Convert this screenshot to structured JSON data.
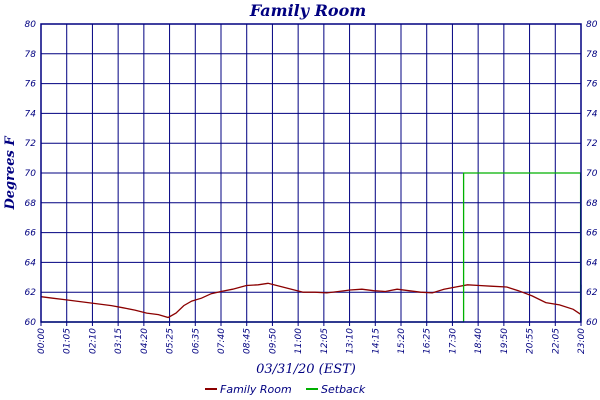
{
  "chart_data": {
    "type": "line",
    "title": "Family Room",
    "xlabel": "03/31/20 (EST)",
    "ylabel": "Degrees F",
    "ylim": [
      60,
      80
    ],
    "yticks": [
      60,
      62,
      64,
      66,
      68,
      70,
      72,
      74,
      76,
      78,
      80
    ],
    "xlim": [
      "00:00",
      "23:00"
    ],
    "xticks": [
      "00:00",
      "01:05",
      "02:10",
      "03:15",
      "04:20",
      "05:25",
      "06:35",
      "07:40",
      "08:45",
      "09:50",
      "11:00",
      "12:05",
      "13:10",
      "14:15",
      "15:20",
      "16:25",
      "17:30",
      "18:40",
      "19:50",
      "20:55",
      "22:05",
      "23:00"
    ],
    "grid": true,
    "legend_position": "bottom",
    "colors": {
      "axis": "#000080",
      "grid": "#000080"
    },
    "series": [
      {
        "name": "Family Room",
        "color": "#8b0000",
        "points": [
          [
            "00:00",
            61.7
          ],
          [
            "00:30",
            61.6
          ],
          [
            "01:00",
            61.5
          ],
          [
            "01:30",
            61.4
          ],
          [
            "02:00",
            61.3
          ],
          [
            "02:30",
            61.2
          ],
          [
            "03:00",
            61.1
          ],
          [
            "03:30",
            60.95
          ],
          [
            "04:00",
            60.8
          ],
          [
            "04:30",
            60.6
          ],
          [
            "05:00",
            60.5
          ],
          [
            "05:25",
            60.3
          ],
          [
            "05:45",
            60.6
          ],
          [
            "06:05",
            61.1
          ],
          [
            "06:25",
            61.4
          ],
          [
            "06:50",
            61.6
          ],
          [
            "07:15",
            61.9
          ],
          [
            "07:40",
            62.05
          ],
          [
            "08:10",
            62.2
          ],
          [
            "08:45",
            62.45
          ],
          [
            "09:15",
            62.5
          ],
          [
            "09:40",
            62.6
          ],
          [
            "10:10",
            62.4
          ],
          [
            "10:40",
            62.2
          ],
          [
            "11:10",
            62.0
          ],
          [
            "11:40",
            62.0
          ],
          [
            "12:10",
            61.95
          ],
          [
            "12:40",
            62.05
          ],
          [
            "13:10",
            62.15
          ],
          [
            "13:40",
            62.2
          ],
          [
            "14:10",
            62.1
          ],
          [
            "14:40",
            62.05
          ],
          [
            "15:10",
            62.2
          ],
          [
            "15:40",
            62.1
          ],
          [
            "16:10",
            62.0
          ],
          [
            "16:40",
            61.95
          ],
          [
            "17:10",
            62.2
          ],
          [
            "17:40",
            62.35
          ],
          [
            "18:10",
            62.5
          ],
          [
            "18:40",
            62.45
          ],
          [
            "19:10",
            62.4
          ],
          [
            "19:50",
            62.35
          ],
          [
            "20:20",
            62.1
          ],
          [
            "20:55",
            61.75
          ],
          [
            "21:30",
            61.3
          ],
          [
            "22:05",
            61.15
          ],
          [
            "22:40",
            60.85
          ],
          [
            "23:00",
            60.5
          ]
        ]
      },
      {
        "name": "Setback",
        "color": "#00b000",
        "points": [
          [
            "00:00",
            60
          ],
          [
            "18:00",
            60
          ],
          [
            "18:00",
            70
          ],
          [
            "22:59",
            70
          ],
          [
            "22:59",
            60
          ],
          [
            "23:00",
            62.5
          ]
        ]
      }
    ]
  }
}
